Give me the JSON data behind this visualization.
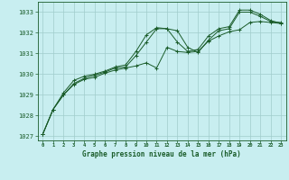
{
  "title": "Graphe pression niveau de la mer (hPa)",
  "background_color": "#c8eef0",
  "grid_color": "#a0cccc",
  "line_color": "#1a5c2a",
  "xlim": [
    -0.5,
    23.5
  ],
  "ylim": [
    1026.8,
    1033.5
  ],
  "yticks": [
    1027,
    1028,
    1029,
    1030,
    1031,
    1032,
    1033
  ],
  "xticks": [
    0,
    1,
    2,
    3,
    4,
    5,
    6,
    7,
    8,
    9,
    10,
    11,
    12,
    13,
    14,
    15,
    16,
    17,
    18,
    19,
    20,
    21,
    22,
    23
  ],
  "series": [
    [
      1027.1,
      1028.3,
      1029.0,
      1029.5,
      1029.75,
      1029.85,
      1030.05,
      1030.2,
      1030.3,
      1030.4,
      1030.55,
      1030.3,
      1031.3,
      1031.1,
      1031.05,
      1031.1,
      1031.6,
      1031.85,
      1032.05,
      1032.15,
      1032.5,
      1032.55,
      1032.5,
      1032.45
    ],
    [
      1027.1,
      1028.3,
      1029.0,
      1029.55,
      1029.8,
      1029.95,
      1030.1,
      1030.3,
      1030.35,
      1030.9,
      1031.55,
      1032.2,
      1032.2,
      1032.1,
      1031.3,
      1031.05,
      1031.65,
      1032.1,
      1032.2,
      1033.0,
      1033.0,
      1032.8,
      1032.55,
      1032.5
    ],
    [
      1027.1,
      1028.3,
      1029.1,
      1029.7,
      1029.9,
      1030.0,
      1030.15,
      1030.35,
      1030.45,
      1031.1,
      1031.9,
      1032.25,
      1032.2,
      1031.55,
      1031.1,
      1031.2,
      1031.85,
      1032.2,
      1032.3,
      1033.1,
      1033.1,
      1032.9,
      1032.6,
      1032.45
    ]
  ]
}
